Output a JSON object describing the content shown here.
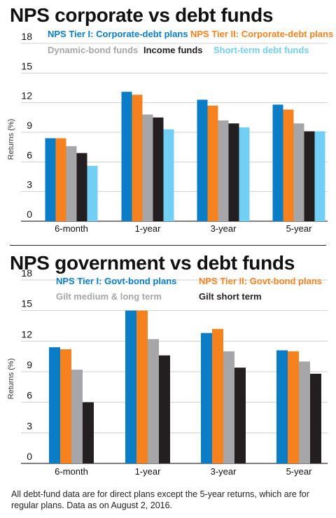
{
  "chart_data": [
    {
      "type": "bar",
      "title": "NPS corporate vs debt funds",
      "ylabel": "Returns (%)",
      "ylim": [
        0,
        18
      ],
      "yticks": [
        0,
        3,
        6,
        9,
        12,
        15,
        18
      ],
      "grid": true,
      "legend_placement": "top",
      "categories": [
        "6-month",
        "1-year",
        "3-year",
        "5-year"
      ],
      "series": [
        {
          "name": "NPS Tier I: Corporate-debt plans",
          "color": "#0a7dc6",
          "values": [
            8.4,
            13.1,
            12.3,
            11.8
          ]
        },
        {
          "name": "NPS Tier II: Corporate-debt plans",
          "color": "#f5821f",
          "values": [
            8.4,
            12.8,
            11.7,
            11.3
          ]
        },
        {
          "name": "Dynamic-bond funds",
          "color": "#a6a6a8",
          "values": [
            7.6,
            10.8,
            10.2,
            9.9
          ]
        },
        {
          "name": "Income funds",
          "color": "#231f20",
          "values": [
            6.9,
            10.5,
            9.9,
            9.1
          ]
        },
        {
          "name": "Short-term debt funds",
          "color": "#72cff4",
          "values": [
            5.6,
            9.3,
            9.5,
            9.1
          ]
        }
      ]
    },
    {
      "type": "bar",
      "title": "NPS government vs debt funds",
      "ylabel": "Returns (%)",
      "ylim": [
        0,
        18
      ],
      "yticks": [
        0,
        3,
        6,
        9,
        12,
        15,
        18
      ],
      "grid": true,
      "legend_placement": "top",
      "categories": [
        "6-month",
        "1-year",
        "3-year",
        "5-year"
      ],
      "series": [
        {
          "name": "NPS Tier I: Govt-bond plans",
          "color": "#0a7dc6",
          "values": [
            11.4,
            15.0,
            12.8,
            11.1
          ]
        },
        {
          "name": "NPS Tier II: Govt-bond plans",
          "color": "#f5821f",
          "values": [
            11.2,
            15.0,
            13.2,
            11.0
          ]
        },
        {
          "name": "Gilt medium & long term",
          "color": "#a6a6a8",
          "values": [
            9.2,
            12.2,
            11.0,
            10.0
          ]
        },
        {
          "name": "Gilt short term",
          "color": "#231f20",
          "values": [
            6.0,
            10.6,
            9.4,
            8.8
          ]
        }
      ]
    }
  ],
  "footnote": "All debt-fund data are for direct plans except the 5-year returns, which are for regular plans. Data as on August 2, 2016."
}
